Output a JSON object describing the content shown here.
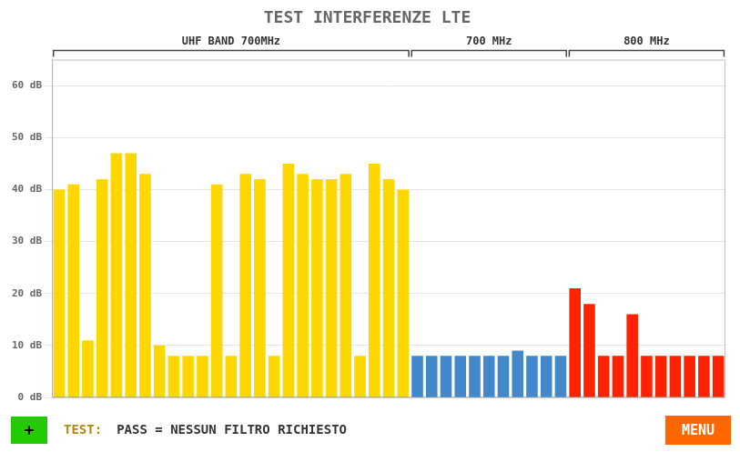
{
  "chart_data": {
    "type": "bar",
    "title": "TEST INTERFERENZE LTE",
    "categories": [
      null,
      null,
      null,
      null,
      null,
      null,
      null,
      null,
      null,
      null,
      null,
      null,
      null,
      null,
      null,
      null,
      null,
      null,
      null,
      null,
      null,
      null,
      null,
      null,
      null,
      null,
      null,
      null,
      null,
      null,
      null,
      null,
      null,
      null,
      null,
      null,
      null,
      null,
      null,
      null,
      null,
      null,
      null,
      null,
      null,
      null,
      null
    ],
    "values": [
      40,
      41,
      11,
      42,
      47,
      47,
      43,
      10,
      8,
      8,
      8,
      41,
      8,
      43,
      42,
      8,
      45,
      43,
      42,
      42,
      43,
      8,
      45,
      42,
      40,
      8,
      8,
      8,
      8,
      8,
      8,
      8,
      9,
      8,
      8,
      8,
      21,
      18,
      8,
      8,
      16,
      8,
      8,
      8,
      8,
      8,
      8
    ],
    "colors": [
      "#FFD700",
      "#FFD700",
      "#FFD700",
      "#FFD700",
      "#FFD700",
      "#FFD700",
      "#FFD700",
      "#FFD700",
      "#FFD700",
      "#FFD700",
      "#FFD700",
      "#FFD700",
      "#FFD700",
      "#FFD700",
      "#FFD700",
      "#FFD700",
      "#FFD700",
      "#FFD700",
      "#FFD700",
      "#FFD700",
      "#FFD700",
      "#FFD700",
      "#FFD700",
      "#FFD700",
      "#FFD700",
      "#4488CC",
      "#4488CC",
      "#4488CC",
      "#4488CC",
      "#4488CC",
      "#4488CC",
      "#4488CC",
      "#4488CC",
      "#4488CC",
      "#4488CC",
      "#4488CC",
      "#FF2200",
      "#FF2200",
      "#FF2200",
      "#FF2200",
      "#FF2200",
      "#FF2200",
      "#FF2200",
      "#FF2200",
      "#FF2200",
      "#FF2200",
      "#FF2200"
    ],
    "ylim": [
      0,
      65
    ],
    "yticks": [
      {
        "value": 0,
        "label": "0 dB"
      },
      {
        "value": 10,
        "label": "10 dB"
      },
      {
        "value": 20,
        "label": "20 dB"
      },
      {
        "value": 30,
        "label": "30 dB"
      },
      {
        "value": 40,
        "label": "40 dB"
      },
      {
        "value": 50,
        "label": "50 dB"
      },
      {
        "value": 60,
        "label": "60 dB"
      }
    ],
    "grid": true,
    "annotations": [
      "UHF BAND 700MHz",
      "700 MHz",
      "800 MHz",
      "+",
      "TEST:",
      "PASS = NESSUN FILTRO RICHIESTO",
      "MENU"
    ]
  }
}
